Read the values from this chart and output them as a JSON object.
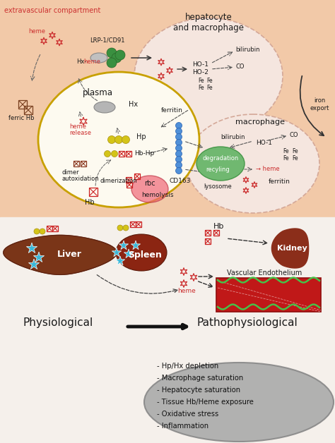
{
  "title_top": "extravascular compartment",
  "plasma_label": "plasma",
  "hepato_label": "hepatocyte\nand macrophage",
  "macro_label": "macrophage",
  "physio_label": "Physiological",
  "patho_label": "Pathophysiological",
  "liver_label": "Liver",
  "spleen_label": "Spleen",
  "kidney_label": "Kidney",
  "vasc_label": "Vascular Endothelium",
  "bullet_items": [
    "- Hp/Hx depletion",
    "- Macrophage saturation",
    "- Hepatocyte saturation",
    "- Tissue Hb/Heme exposure",
    "- Oxidative stress",
    "- Inflammation"
  ],
  "colors": {
    "salmon_bg": "#f2c9a8",
    "bottom_bg": "#f5f0eb",
    "plasma_border": "#c8a000",
    "hepato_fill": "#f5e6df",
    "hepato_border": "#d4a898",
    "macro_fill": "#f5e6df",
    "macro_border": "#d4a898",
    "liver_brown": "#7a3518",
    "spleen_brown": "#8b2512",
    "kidney_brown": "#8b2e1a",
    "green_cell": "#6aad6a",
    "cyan_star": "#3ab8d8",
    "red_hb": "#cc2020",
    "text_red": "#cc3030",
    "text_dark": "#1a1a1a",
    "gray_hx": "#a8a8a8",
    "yellow_hp": "#d4c418",
    "blue_cd163": "#4488cc",
    "green_protein": "#3a9040",
    "dark_brown_hb": "#7a4020"
  }
}
